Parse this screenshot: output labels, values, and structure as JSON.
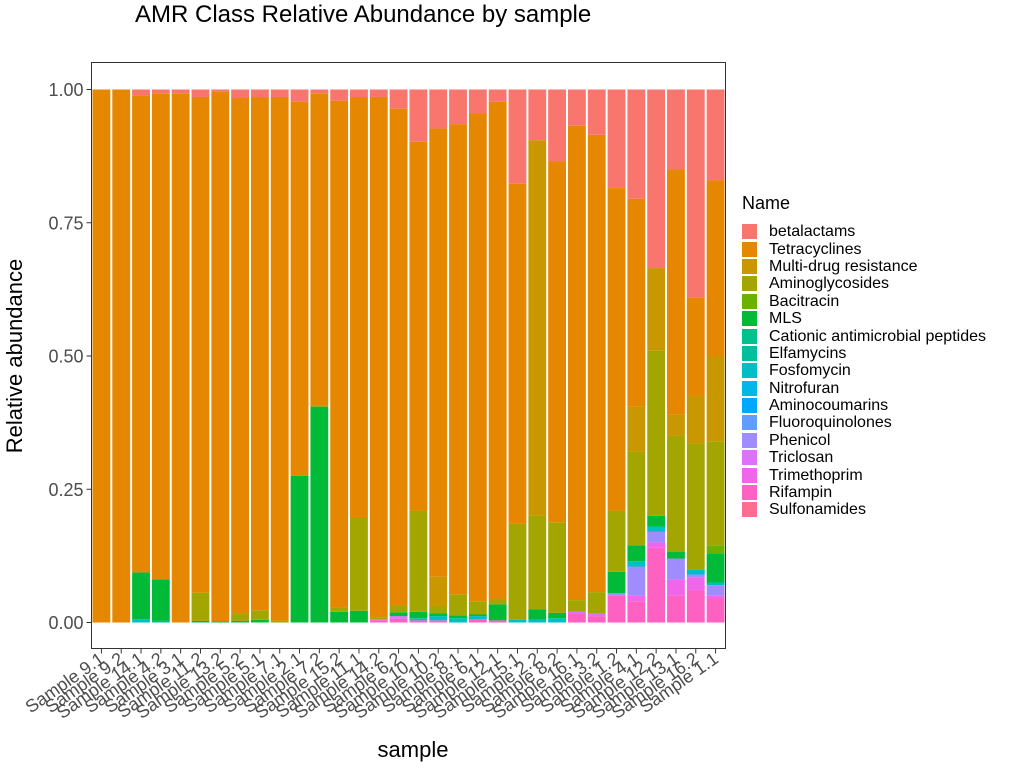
{
  "chart_data": {
    "type": "bar",
    "stacked": true,
    "title": "AMR Class Relative Abundance by sample",
    "xlabel": "sample",
    "ylabel": "Relative abundance",
    "ylim": [
      0,
      1.05
    ],
    "yticks": [
      "0.00",
      "0.25",
      "0.50",
      "0.75",
      "1.00"
    ],
    "grid": false,
    "legend_title": "Name",
    "legend_position": "right",
    "classes": [
      {
        "name": "betalactams",
        "color": "#F8766D"
      },
      {
        "name": "Tetracyclines",
        "color": "#E58700"
      },
      {
        "name": "Multi-drug resistance",
        "color": "#C99800"
      },
      {
        "name": "Aminoglycosides",
        "color": "#A3A500"
      },
      {
        "name": "Bacitracin",
        "color": "#6BB100"
      },
      {
        "name": "MLS",
        "color": "#00BA38"
      },
      {
        "name": "Cationic antimicrobial peptides",
        "color": "#00C08B"
      },
      {
        "name": "Elfamycins",
        "color": "#00BF9C"
      },
      {
        "name": "Fosfomycin",
        "color": "#00BFC4"
      },
      {
        "name": "Nitrofuran",
        "color": "#00B8E7"
      },
      {
        "name": "Aminocoumarins",
        "color": "#00A9FF"
      },
      {
        "name": "Fluoroquinolones",
        "color": "#619CFF"
      },
      {
        "name": "Phenicol",
        "color": "#9F8CFF"
      },
      {
        "name": "Triclosan",
        "color": "#DB72FB"
      },
      {
        "name": "Trimethoprim",
        "color": "#F066EA"
      },
      {
        "name": "Rifampin",
        "color": "#FF61C3"
      },
      {
        "name": "Sulfonamides",
        "color": "#FF6C91"
      }
    ],
    "categories": [
      "Sample 9.1",
      "Sample 9.2",
      "Sample 14.1",
      "Sample 4.2",
      "Sample 3.1",
      "Sample 11.2",
      "Sample 13.2",
      "Sample 5.2",
      "Sample 5.1",
      "Sample 7.1",
      "Sample 2.1",
      "Sample 7.2",
      "Sample 15.2",
      "Sample 11.1",
      "Sample 14.2",
      "Sample 6.2",
      "Sample 10.1",
      "Sample 10.2",
      "Sample 8.1",
      "Sample 6.1",
      "Sample 12.1",
      "Sample 15.1",
      "Sample 2.2",
      "Sample 8.2",
      "Sample 16.1",
      "Sample 3.2",
      "Sample 1.2",
      "Sample 4.1",
      "Sample 12.2",
      "Sample 13.1",
      "Sample 16.2",
      "Sample 1.1"
    ],
    "segments": [
      {
        "Tetracyclines": 1.0
      },
      {
        "Tetracyclines": 1.0
      },
      {
        "Fosfomycin": 0.006,
        "MLS": 0.088,
        "Tetracyclines": 0.895,
        "betalactams": 0.011
      },
      {
        "Cationic antimicrobial peptides": 0.003,
        "MLS": 0.078,
        "Tetracyclines": 0.912,
        "betalactams": 0.007
      },
      {
        "Tetracyclines": 0.993,
        "betalactams": 0.007
      },
      {
        "MLS": 0.003,
        "Aminoglycosides": 0.053,
        "Tetracyclines": 0.93,
        "betalactams": 0.014
      },
      {
        "MLS": 0.002,
        "Tetracyclines": 0.994,
        "betalactams": 0.004
      },
      {
        "MLS": 0.003,
        "Aminoglycosides": 0.014,
        "Tetracyclines": 0.967,
        "betalactams": 0.016
      },
      {
        "MLS": 0.005,
        "Aminoglycosides": 0.018,
        "Tetracyclines": 0.962,
        "betalactams": 0.015
      },
      {
        "Aminoglycosides": 0.003,
        "Tetracyclines": 0.983,
        "betalactams": 0.014
      },
      {
        "MLS": 0.275,
        "Tetracyclines": 0.702,
        "betalactams": 0.023
      },
      {
        "MLS": 0.405,
        "Multi-drug resistance": 0.003,
        "Tetracyclines": 0.585,
        "betalactams": 0.007
      },
      {
        "MLS": 0.02,
        "Aminoglycosides": 0.008,
        "Tetracyclines": 0.951,
        "betalactams": 0.021
      },
      {
        "MLS": 0.022,
        "Aminoglycosides": 0.176,
        "Tetracyclines": 0.787,
        "betalactams": 0.015
      },
      {
        "Rifampin": 0.004,
        "Trimethoprim": 0.002,
        "Aminoglycosides": 0.004,
        "Tetracyclines": 0.976,
        "betalactams": 0.014
      },
      {
        "Rifampin": 0.007,
        "Triclosan": 0.005,
        "MLS": 0.007,
        "Aminoglycosides": 0.013,
        "Tetracyclines": 0.932,
        "betalactams": 0.036
      },
      {
        "Rifampin": 0.004,
        "Fosfomycin": 0.004,
        "MLS": 0.012,
        "Aminoglycosides": 0.19,
        "Tetracyclines": 0.692,
        "betalactams": 0.098
      },
      {
        "Rifampin": 0.004,
        "Fosfomycin": 0.008,
        "MLS": 0.005,
        "Aminoglycosides": 0.013,
        "Multi-drug resistance": 0.056,
        "Tetracyclines": 0.841,
        "betalactams": 0.073
      },
      {
        "Fosfomycin": 0.008,
        "MLS": 0.005,
        "Aminoglycosides": 0.04,
        "Tetracyclines": 0.882,
        "betalactams": 0.065
      },
      {
        "Rifampin": 0.006,
        "Fosfomycin": 0.006,
        "MLS": 0.003,
        "Aminoglycosides": 0.025,
        "Tetracyclines": 0.915,
        "betalactams": 0.045
      },
      {
        "Rifampin": 0.004,
        "MLS": 0.03,
        "Aminoglycosides": 0.01,
        "Tetracyclines": 0.933,
        "betalactams": 0.023
      },
      {
        "Fosfomycin": 0.005,
        "Aminoglycosides": 0.18,
        "Tetracyclines": 0.638,
        "betalactams": 0.177
      },
      {
        "Fosfomycin": 0.005,
        "MLS": 0.02,
        "Aminoglycosides": 0.175,
        "Multi-drug resistance": 0.705,
        "betalactams": 0.095
      },
      {
        "Fosfomycin": 0.008,
        "MLS": 0.01,
        "Aminoglycosides": 0.17,
        "Tetracyclines": 0.677,
        "betalactams": 0.135
      },
      {
        "Rifampin": 0.017,
        "Triclosan": 0.003,
        "Aminoglycosides": 0.022,
        "Tetracyclines": 0.89,
        "betalactams": 0.068
      },
      {
        "Rifampin": 0.012,
        "Triclosan": 0.005,
        "Aminoglycosides": 0.04,
        "Tetracyclines": 0.858,
        "betalactams": 0.085
      },
      {
        "Rifampin": 0.05,
        "Phenicol": 0.005,
        "MLS": 0.04,
        "Aminoglycosides": 0.115,
        "Tetracyclines": 0.605,
        "betalactams": 0.185
      },
      {
        "Rifampin": 0.04,
        "Trimethoprim": 0.01,
        "Phenicol": 0.055,
        "Fosfomycin": 0.01,
        "MLS": 0.03,
        "Aminoglycosides": 0.175,
        "Multi-drug resistance": 0.085,
        "Tetracyclines": 0.39,
        "betalactams": 0.205
      },
      {
        "Rifampin": 0.14,
        "Trimethoprim": 0.01,
        "Phenicol": 0.02,
        "Fosfomycin": 0.01,
        "MLS": 0.02,
        "Aminoglycosides": 0.31,
        "Multi-drug resistance": 0.155,
        "betalactams": 0.335
      },
      {
        "Rifampin": 0.05,
        "Trimethoprim": 0.03,
        "Phenicol": 0.04,
        "MLS": 0.013,
        "Aminoglycosides": 0.217,
        "Multi-drug resistance": 0.04,
        "Tetracyclines": 0.46,
        "betalactams": 0.15
      },
      {
        "Rifampin": 0.06,
        "Trimethoprim": 0.025,
        "Phenicol": 0.005,
        "Fosfomycin": 0.01,
        "Aminoglycosides": 0.235,
        "Multi-drug resistance": 0.09,
        "Tetracyclines": 0.185,
        "betalactams": 0.39
      },
      {
        "Rifampin": 0.045,
        "Trimethoprim": 0.005,
        "Phenicol": 0.02,
        "Fosfomycin": 0.005,
        "MLS": 0.055,
        "Bacitracin": 0.015,
        "Aminoglycosides": 0.195,
        "Multi-drug resistance": 0.16,
        "Tetracyclines": 0.33,
        "betalactams": 0.17
      }
    ]
  }
}
